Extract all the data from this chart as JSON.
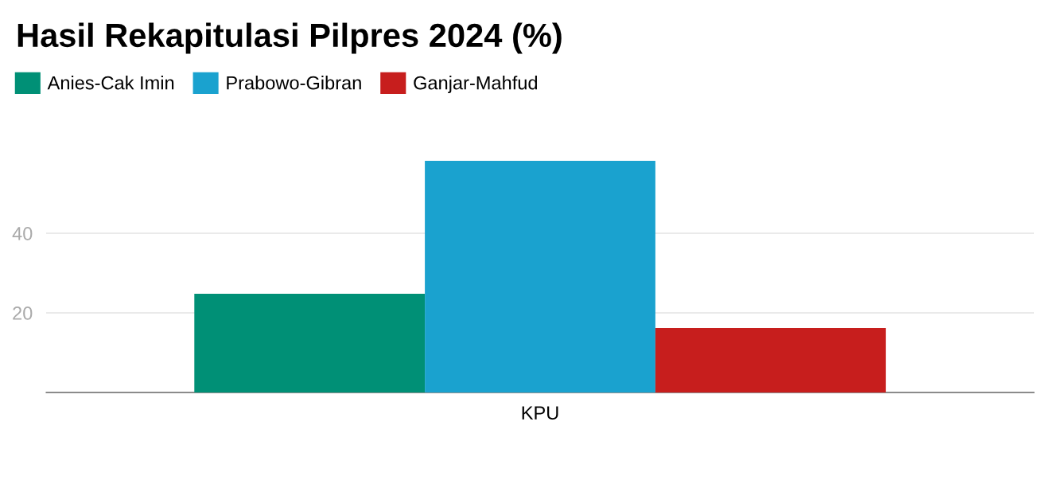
{
  "chart_data": {
    "type": "bar",
    "title": "Hasil Rekapitulasi Pilpres 2024 (%)",
    "categories": [
      "KPU"
    ],
    "series": [
      {
        "name": "Anies-Cak Imin",
        "color": "#009076",
        "values": [
          24.8
        ]
      },
      {
        "name": "Prabowo-Gibran",
        "color": "#1aa2cf",
        "values": [
          58.2
        ]
      },
      {
        "name": "Ganjar-Mahfud",
        "color": "#c71e1d",
        "values": [
          16.2
        ]
      }
    ],
    "ylim": [
      0,
      58.2
    ],
    "yticks": [
      {
        "value": 0,
        "label": null
      },
      20,
      40
    ],
    "grid": "y",
    "legend": "top left"
  }
}
